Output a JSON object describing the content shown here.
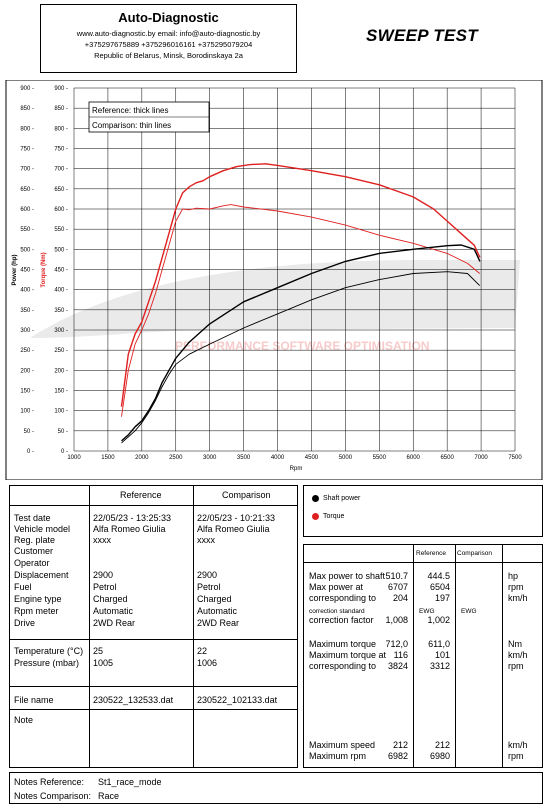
{
  "header": {
    "company": "Auto-Diagnostic",
    "web_line": "www.auto-diagnostic.by      email: info@auto-diagnostic.by",
    "phone_line": "+375297675889  +375296016161  +375295079204",
    "address_line": "Republic of Belarus, Minsk, Borodinskaya 2a"
  },
  "test_title": "SWEEP TEST",
  "chart_data": {
    "type": "line",
    "xlabel": "Rpm",
    "ylabel_power": "Power (hp)",
    "ylabel_torque": "Torque (Nm)",
    "xlim": [
      1000,
      7500
    ],
    "ylim": [
      0,
      900
    ],
    "x_ticks": [
      1000,
      1500,
      2000,
      2500,
      3000,
      3500,
      4000,
      4500,
      5000,
      5500,
      6000,
      6500,
      7000,
      7500
    ],
    "y_ticks": [
      0,
      50,
      100,
      150,
      200,
      250,
      300,
      350,
      400,
      450,
      500,
      550,
      600,
      650,
      700,
      750,
      800,
      850,
      900
    ],
    "legend_box": [
      "Reference: thick lines",
      "Comparison: thin lines"
    ],
    "watermark": "PERFORMANCE SOFTWARE OPTIMISATION",
    "grid": true,
    "series": [
      {
        "name": "Reference torque",
        "quantity": "torque",
        "color": "#e02020",
        "weight": "thick",
        "x": [
          1700,
          1800,
          1900,
          2000,
          2100,
          2200,
          2300,
          2400,
          2500,
          2600,
          2700,
          2800,
          2900,
          3000,
          3200,
          3400,
          3600,
          3824,
          4000,
          4500,
          5000,
          5500,
          6000,
          6300,
          6500,
          6700,
          6900,
          6982
        ],
        "y": [
          110,
          240,
          290,
          320,
          370,
          420,
          480,
          540,
          600,
          640,
          655,
          665,
          670,
          680,
          695,
          705,
          710,
          712,
          708,
          695,
          680,
          660,
          630,
          600,
          570,
          540,
          510,
          480
        ]
      },
      {
        "name": "Comparison torque",
        "quantity": "torque",
        "color": "#e02020",
        "weight": "thin",
        "x": [
          1700,
          1800,
          1900,
          2000,
          2100,
          2200,
          2300,
          2400,
          2500,
          2600,
          2700,
          2800,
          3000,
          3200,
          3312,
          3500,
          4000,
          4500,
          5000,
          5500,
          6000,
          6500,
          6800,
          6980
        ],
        "y": [
          85,
          200,
          265,
          300,
          340,
          390,
          450,
          510,
          570,
          600,
          598,
          602,
          600,
          608,
          611,
          605,
          595,
          580,
          560,
          535,
          515,
          490,
          465,
          440
        ]
      },
      {
        "name": "Reference shaft power",
        "quantity": "power",
        "color": "#000000",
        "weight": "thick",
        "x": [
          1700,
          1800,
          1900,
          2000,
          2100,
          2200,
          2300,
          2400,
          2500,
          2700,
          3000,
          3500,
          4000,
          4500,
          5000,
          5500,
          6000,
          6500,
          6707,
          6900,
          6982
        ],
        "y": [
          25,
          40,
          60,
          75,
          100,
          130,
          170,
          200,
          230,
          270,
          315,
          370,
          405,
          440,
          470,
          490,
          500,
          509,
          510.7,
          500,
          470
        ]
      },
      {
        "name": "Comparison shaft power",
        "quantity": "power",
        "color": "#000000",
        "weight": "thin",
        "x": [
          1700,
          1800,
          1900,
          2000,
          2100,
          2200,
          2300,
          2400,
          2500,
          2700,
          3000,
          3500,
          4000,
          4500,
          5000,
          5500,
          6000,
          6504,
          6800,
          6980
        ],
        "y": [
          20,
          35,
          50,
          70,
          95,
          125,
          160,
          190,
          215,
          240,
          265,
          305,
          340,
          375,
          405,
          425,
          440,
          444.5,
          440,
          410
        ]
      }
    ]
  },
  "legend": {
    "shaft_power": "Shaft power",
    "torque": "Torque"
  },
  "left_table": {
    "col_reference": "Reference",
    "col_comparison": "Comparison",
    "labels": [
      "Test date",
      "Vehicle model",
      "Reg. plate",
      "Customer",
      "Operator",
      "Displacement",
      "Fuel",
      "Engine type",
      "Rpm meter",
      "Drive"
    ],
    "reference": [
      "22/05/23 - 13:25:33",
      "Alfa Romeo Giulia",
      "xxxx",
      "",
      "",
      "2900",
      "Petrol",
      "Charged",
      "Automatic",
      "2WD Rear"
    ],
    "comparison": [
      "22/05/23 - 10:21:33",
      "Alfa Romeo Giulia",
      "xxxx",
      "",
      "",
      "2900",
      "Petrol",
      "Charged",
      "Automatic",
      "2WD Rear"
    ],
    "temp_label": "Temperature (°C)",
    "temp_ref": "25",
    "temp_comp": "22",
    "pressure_label": "Pressure (mbar)",
    "pressure_ref": "1005",
    "pressure_comp": "1006",
    "file_label": "File name",
    "file_ref": "230522_132533.dat",
    "file_comp": "230522_102133.dat",
    "note_label": "Note"
  },
  "right_table": {
    "col_reference": "Reference",
    "col_comparison": "Comparison",
    "rows": [
      {
        "label": "Max power to shaft",
        "ref": "510.7",
        "comp": "444.5",
        "unit": "hp"
      },
      {
        "label": "Max power at",
        "ref": "6707",
        "comp": "6504",
        "unit": "rpm"
      },
      {
        "label": "corresponding to",
        "ref": "204",
        "comp": "197",
        "unit": "km/h"
      },
      {
        "label": "correction standard",
        "ref": "EWG",
        "comp": "EWG",
        "unit": ""
      },
      {
        "label": "correction factor",
        "ref": "1,008",
        "comp": "1,002",
        "unit": ""
      },
      {
        "label": "Maximum torque",
        "ref": "712,0",
        "comp": "611,0",
        "unit": "Nm"
      },
      {
        "label": "Maximum torque at",
        "ref": "116",
        "comp": "101",
        "unit": "km/h"
      },
      {
        "label": "corresponding to",
        "ref": "3824",
        "comp": "3312",
        "unit": "rpm"
      },
      {
        "label": "Maximum speed",
        "ref": "212",
        "comp": "212",
        "unit": "km/h"
      },
      {
        "label": "Maximum rpm",
        "ref": "6982",
        "comp": "6980",
        "unit": "rpm"
      }
    ]
  },
  "notes": {
    "reference_label": "Notes Reference:",
    "reference_value": "St1_race_mode",
    "comparison_label": "Notes Comparison:",
    "comparison_value": "Race"
  }
}
